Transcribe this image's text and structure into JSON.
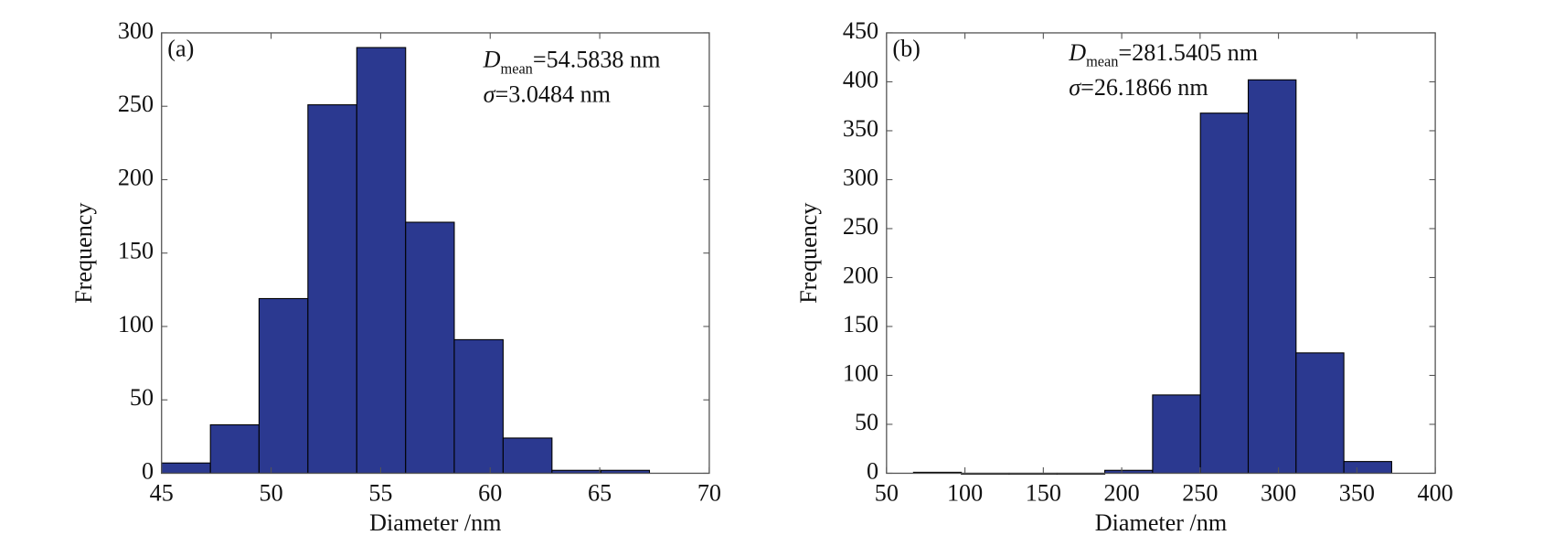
{
  "chart_data": [
    {
      "type": "histogram",
      "panel": "(a)",
      "annotation": [
        {
          "symbol": "D",
          "sub": "mean",
          "text": "=54.5838 nm"
        },
        {
          "symbol": "σ",
          "text": "=3.0484 nm"
        }
      ],
      "xlabel": "Diameter /nm",
      "ylabel": "Frequency",
      "color": "#2b3990",
      "bins": [
        45,
        47.23,
        49.45,
        51.68,
        53.91,
        56.14,
        58.36,
        60.59,
        62.82,
        65.05,
        67.27
      ],
      "values": [
        7,
        33,
        119,
        251,
        290,
        171,
        91,
        24,
        2,
        2
      ],
      "xlim": [
        45,
        70
      ],
      "xticks": [
        45,
        50,
        55,
        60,
        65,
        70
      ],
      "ylim": [
        0,
        300
      ],
      "yticks": [
        0,
        50,
        100,
        150,
        200,
        250,
        300
      ]
    },
    {
      "type": "histogram",
      "panel": "(b)",
      "annotation": [
        {
          "symbol": "D",
          "sub": "mean",
          "text": "=281.5405 nm"
        },
        {
          "symbol": "σ",
          "text": "=26.1866 nm"
        }
      ],
      "xlabel": "Diameter /nm",
      "ylabel": "Frequency",
      "color": "#2b3990",
      "bins": [
        67.2,
        97.7,
        128.2,
        158.7,
        189.2,
        219.7,
        250.2,
        280.7,
        311.2,
        341.7,
        372.2
      ],
      "values": [
        1,
        0,
        0,
        0,
        3,
        80,
        368,
        402,
        123,
        12
      ],
      "xlim": [
        50,
        400
      ],
      "xticks": [
        50,
        100,
        150,
        200,
        250,
        300,
        350,
        400
      ],
      "ylim": [
        0,
        450
      ],
      "yticks": [
        0,
        50,
        100,
        150,
        200,
        250,
        300,
        350,
        400,
        450
      ]
    }
  ]
}
